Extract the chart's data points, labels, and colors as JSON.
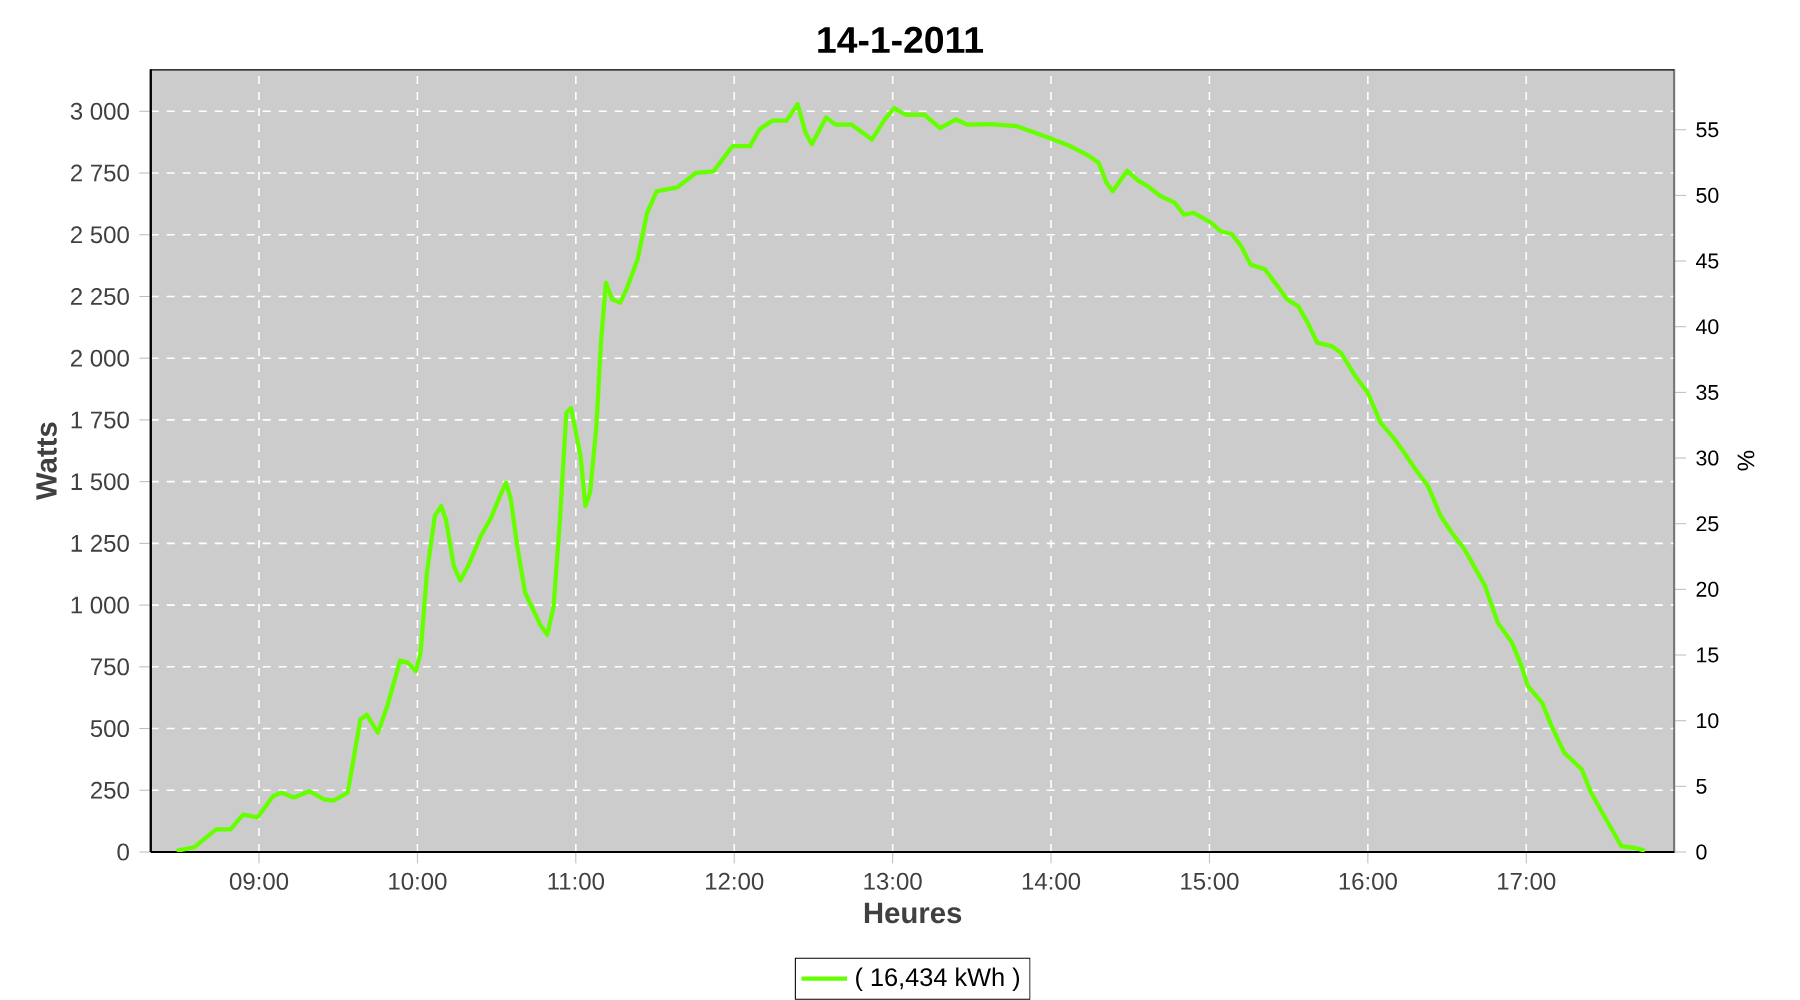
{
  "chart_data": {
    "type": "line",
    "title": "14-1-2011",
    "xlabel": "Heures",
    "ylabel": "Watts",
    "y2label": "%",
    "xlim": [
      8.316,
      17.937
    ],
    "xticks": [
      {
        "value": 9,
        "label": "09:00"
      },
      {
        "value": 10,
        "label": "10:00"
      },
      {
        "value": 11,
        "label": "11:00"
      },
      {
        "value": 12,
        "label": "12:00"
      },
      {
        "value": 13,
        "label": "13:00"
      },
      {
        "value": 14,
        "label": "14:00"
      },
      {
        "value": 15,
        "label": "15:00"
      },
      {
        "value": 16,
        "label": "16:00"
      },
      {
        "value": 17,
        "label": "17:00"
      }
    ],
    "ylim": [
      0,
      3170
    ],
    "yticks": [
      0,
      250,
      500,
      750,
      {
        "value": 1000,
        "label": "1 000"
      },
      {
        "value": 1250,
        "label": "1 250"
      },
      {
        "value": 1500,
        "label": "1 500"
      },
      {
        "value": 1750,
        "label": "1 750"
      },
      {
        "value": 2000,
        "label": "2 000"
      },
      {
        "value": 2250,
        "label": "2 250"
      },
      {
        "value": 2500,
        "label": "2 500"
      },
      {
        "value": 2750,
        "label": "2 750"
      },
      {
        "value": 3000,
        "label": "3 000"
      }
    ],
    "y2lim": [
      0,
      59.6
    ],
    "y2ticks": [
      0,
      5,
      10,
      15,
      20,
      25,
      30,
      35,
      40,
      45,
      50,
      55
    ],
    "grid": true,
    "legend": "bottom",
    "marker": "none",
    "line_style": "solid",
    "series": [
      {
        "name": "( 16,434 kWh )",
        "color": "#66ff00",
        "x": [
          8.48,
          8.59,
          8.73,
          8.82,
          8.9,
          8.99,
          9.09,
          9.14,
          9.22,
          9.32,
          9.41,
          9.47,
          9.56,
          9.64,
          9.68,
          9.75,
          9.81,
          9.89,
          9.94,
          9.99,
          10.02,
          10.06,
          10.11,
          10.15,
          10.18,
          10.23,
          10.27,
          10.32,
          10.4,
          10.46,
          10.53,
          10.56,
          10.59,
          10.63,
          10.68,
          10.74,
          10.78,
          10.82,
          10.86,
          10.9,
          10.94,
          10.97,
          11.03,
          11.06,
          11.09,
          11.13,
          11.16,
          11.19,
          11.23,
          11.28,
          11.32,
          11.39,
          11.45,
          11.51,
          11.64,
          11.76,
          11.87,
          11.99,
          12.1,
          12.16,
          12.24,
          12.33,
          12.4,
          12.45,
          12.49,
          12.58,
          12.64,
          12.74,
          12.87,
          12.95,
          13.01,
          13.08,
          13.2,
          13.3,
          13.4,
          13.47,
          13.62,
          13.78,
          13.99,
          14.12,
          14.24,
          14.3,
          14.35,
          14.39,
          14.48,
          14.55,
          14.61,
          14.69,
          14.78,
          14.84,
          14.9,
          15.01,
          15.07,
          15.14,
          15.2,
          15.26,
          15.35,
          15.43,
          15.49,
          15.56,
          15.62,
          15.68,
          15.77,
          15.83,
          15.92,
          16.0,
          16.08,
          16.17,
          16.23,
          16.3,
          16.38,
          16.46,
          16.53,
          16.61,
          16.67,
          16.74,
          16.82,
          16.91,
          16.97,
          17.01,
          17.1,
          17.16,
          17.24,
          17.35,
          17.41,
          17.48,
          17.54,
          17.6,
          17.69,
          17.75
        ],
        "values": [
          5,
          19,
          92,
          92,
          151,
          140,
          227,
          240,
          221,
          246,
          213,
          208,
          240,
          537,
          556,
          483,
          591,
          775,
          767,
          732,
          807,
          1131,
          1361,
          1401,
          1347,
          1158,
          1099,
          1158,
          1280,
          1347,
          1455,
          1496,
          1428,
          1239,
          1050,
          969,
          915,
          880,
          996,
          1347,
          1779,
          1798,
          1604,
          1401,
          1455,
          1725,
          2076,
          2306,
          2238,
          2225,
          2279,
          2400,
          2589,
          2676,
          2692,
          2751,
          2757,
          2859,
          2859,
          2927,
          2962,
          2962,
          3029,
          2913,
          2867,
          2975,
          2946,
          2946,
          2886,
          2967,
          3013,
          2986,
          2986,
          2932,
          2967,
          2946,
          2948,
          2940,
          2892,
          2859,
          2819,
          2792,
          2711,
          2676,
          2759,
          2719,
          2697,
          2657,
          2630,
          2581,
          2589,
          2549,
          2514,
          2503,
          2454,
          2379,
          2360,
          2292,
          2238,
          2211,
          2144,
          2063,
          2049,
          2022,
          1928,
          1860,
          1739,
          1671,
          1617,
          1550,
          1482,
          1361,
          1293,
          1226,
          1158,
          1077,
          929,
          848,
          753,
          672,
          605,
          510,
          402,
          335,
          240,
          159,
          92,
          24,
          16,
          5
        ]
      }
    ]
  }
}
